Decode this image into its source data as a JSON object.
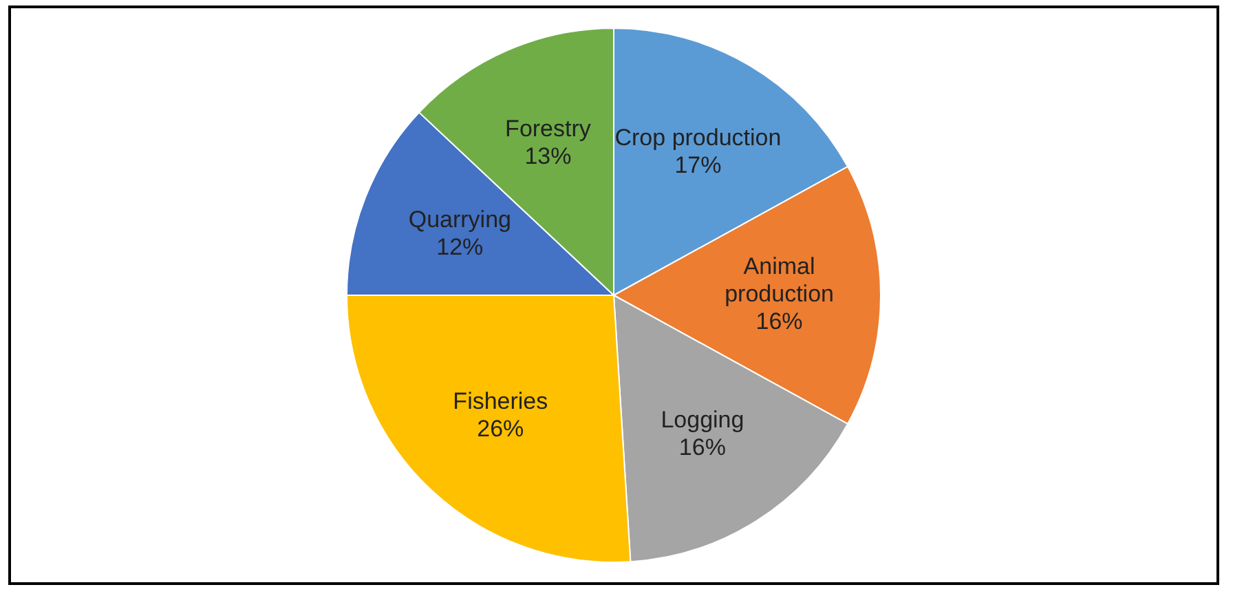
{
  "chart_data": {
    "type": "pie",
    "categories": [
      "Crop production",
      "Animal production",
      "Logging",
      "Fisheries",
      "Quarrying",
      "Forestry"
    ],
    "values": [
      17,
      16,
      16,
      26,
      12,
      13
    ],
    "value_labels": [
      "17%",
      "16%",
      "16%",
      "26%",
      "12%",
      "13%"
    ],
    "colors": [
      "#5b9bd5",
      "#ed7d31",
      "#a5a5a5",
      "#ffc000",
      "#4472c4",
      "#70ad47"
    ],
    "legend": false
  }
}
